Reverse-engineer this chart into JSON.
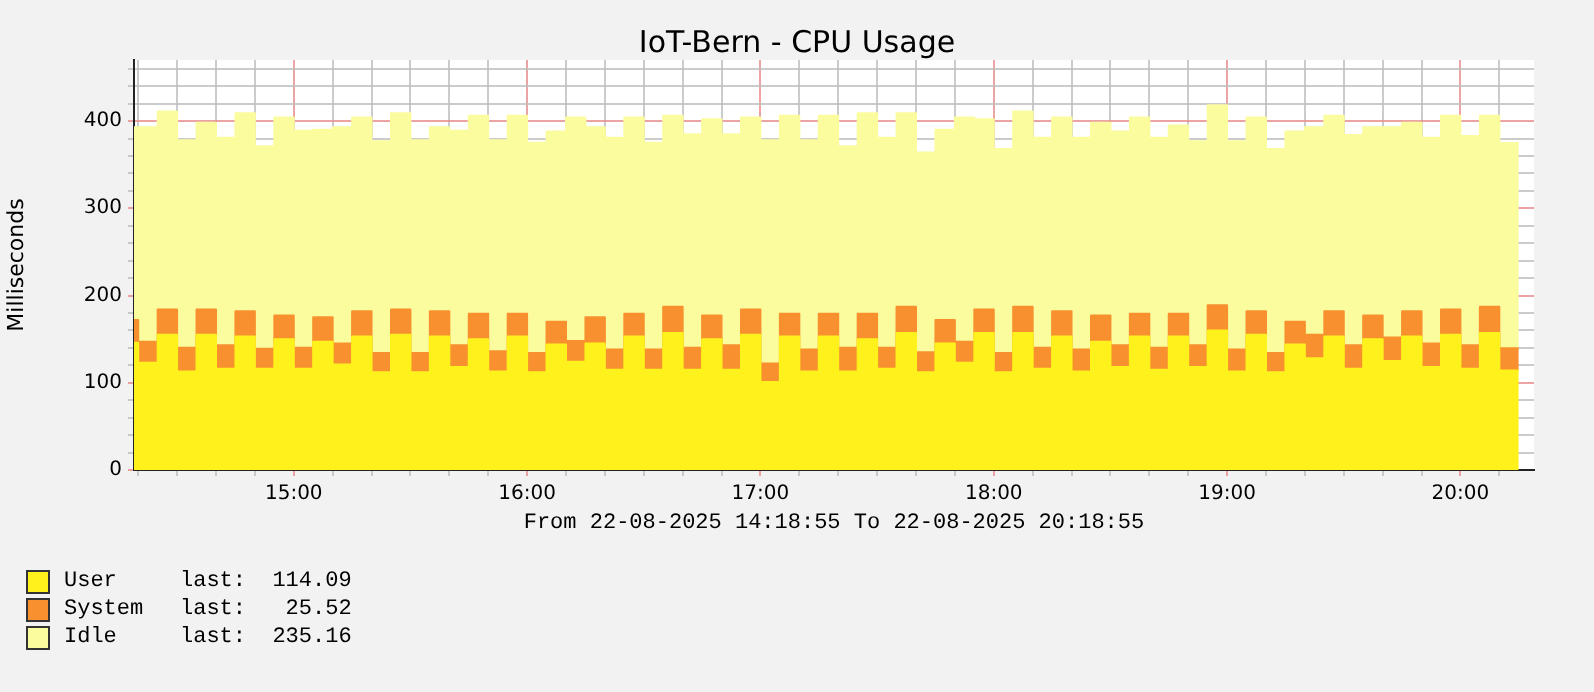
{
  "chart_data": {
    "type": "area",
    "title": "IoT-Bern - CPU Usage",
    "xlabel": "From 22-08-2025 14:18:55 To 22-08-2025 20:18:55",
    "ylabel": "Milliseconds",
    "stacked": true,
    "grid": true,
    "legend": "bottom left",
    "x": [
      14.3153,
      14.3333,
      14.3333,
      14.4167,
      14.4167,
      14.5,
      14.5,
      14.5833,
      14.5833,
      14.6667,
      14.6667,
      14.75,
      14.75,
      14.8333,
      14.8333,
      14.9167,
      14.9167,
      15,
      15,
      15.0833,
      15.0833,
      15.1667,
      15.1667,
      15.25,
      15.25,
      15.3333,
      15.3333,
      15.4167,
      15.4167,
      15.5,
      15.5,
      15.5833,
      15.5833,
      15.6667,
      15.6667,
      15.75,
      15.75,
      15.8333,
      15.8333,
      15.9167,
      15.9167,
      16,
      16,
      16.0833,
      16.0833,
      16.1667,
      16.1667,
      16.25,
      16.25,
      16.3333,
      16.3333,
      16.4167,
      16.4167,
      16.5,
      16.5,
      16.5833,
      16.5833,
      16.6667,
      16.6667,
      16.75,
      16.75,
      16.8333,
      16.8333,
      16.9167,
      16.9167,
      17,
      17,
      17.0833,
      17.0833,
      17.1667,
      17.1667,
      17.25,
      17.25,
      17.3333,
      17.3333,
      17.4167,
      17.4167,
      17.5,
      17.5,
      17.5833,
      17.5833,
      17.6667,
      17.6667,
      17.75,
      17.75,
      17.8333,
      17.8333,
      17.9167,
      17.9167,
      18,
      18,
      18.0833,
      18.0833,
      18.1667,
      18.1667,
      18.25,
      18.25,
      18.3333,
      18.3333,
      18.4167,
      18.4167,
      18.5,
      18.5,
      18.5833,
      18.5833,
      18.6667,
      18.6667,
      18.75,
      18.75,
      18.8333,
      18.8333,
      18.9167,
      18.9167,
      19,
      19,
      19.0833,
      19.0833,
      19.1667,
      19.1667,
      19.25,
      19.25,
      19.3333,
      19.3333,
      19.4167,
      19.4167,
      19.5,
      19.5,
      19.5833,
      19.5833,
      19.6667,
      19.6667,
      19.75,
      19.75,
      19.8333,
      19.8333,
      19.9167,
      19.9167,
      20,
      20,
      20.0833,
      20.0833,
      20.1667,
      20.1667,
      20.25
    ],
    "xlim": [
      14.3153,
      20.3153
    ],
    "xticks": [
      {
        "value": 14.3333,
        "label": null
      },
      {
        "value": 14.5,
        "label": null
      },
      {
        "value": 14.6667,
        "label": null
      },
      {
        "value": 14.8333,
        "label": null
      },
      {
        "value": 15,
        "label": "15:00"
      },
      {
        "value": 15.1667,
        "label": null
      },
      {
        "value": 15.3333,
        "label": null
      },
      {
        "value": 15.5,
        "label": null
      },
      {
        "value": 15.6667,
        "label": null
      },
      {
        "value": 15.8333,
        "label": null
      },
      {
        "value": 16,
        "label": "16:00"
      },
      {
        "value": 16.1667,
        "label": null
      },
      {
        "value": 16.3333,
        "label": null
      },
      {
        "value": 16.5,
        "label": null
      },
      {
        "value": 16.6667,
        "label": null
      },
      {
        "value": 16.8333,
        "label": null
      },
      {
        "value": 17,
        "label": "17:00"
      },
      {
        "value": 17.1667,
        "label": null
      },
      {
        "value": 17.3333,
        "label": null
      },
      {
        "value": 17.5,
        "label": null
      },
      {
        "value": 17.6667,
        "label": null
      },
      {
        "value": 17.8333,
        "label": null
      },
      {
        "value": 18,
        "label": "18:00"
      },
      {
        "value": 18.1667,
        "label": null
      },
      {
        "value": 18.3333,
        "label": null
      },
      {
        "value": 18.5,
        "label": null
      },
      {
        "value": 18.6667,
        "label": null
      },
      {
        "value": 18.8333,
        "label": null
      },
      {
        "value": 19,
        "label": "19:00"
      },
      {
        "value": 19.1667,
        "label": null
      },
      {
        "value": 19.3333,
        "label": null
      },
      {
        "value": 19.5,
        "label": null
      },
      {
        "value": 19.6667,
        "label": null
      },
      {
        "value": 19.8333,
        "label": null
      },
      {
        "value": 20,
        "label": "20:00"
      },
      {
        "value": 20.1667,
        "label": null
      }
    ],
    "ylim": [
      0,
      470
    ],
    "yticks": [
      0,
      {
        "value": 20,
        "label": null
      },
      {
        "value": 40,
        "label": null
      },
      {
        "value": 60,
        "label": null
      },
      {
        "value": 80,
        "label": null
      },
      100,
      {
        "value": 120,
        "label": null
      },
      {
        "value": 140,
        "label": null
      },
      {
        "value": 160,
        "label": null
      },
      {
        "value": 180,
        "label": null
      },
      200,
      {
        "value": 220,
        "label": null
      },
      {
        "value": 240,
        "label": null
      },
      {
        "value": 260,
        "label": null
      },
      {
        "value": 280,
        "label": null
      },
      300,
      {
        "value": 320,
        "label": null
      },
      {
        "value": 340,
        "label": null
      },
      {
        "value": 360,
        "label": null
      },
      {
        "value": 380,
        "label": null
      },
      400,
      {
        "value": 420,
        "label": null
      },
      {
        "value": 440,
        "label": null
      },
      {
        "value": 460,
        "label": null
      }
    ],
    "series": [
      {
        "name": "User",
        "color": "#fff21c",
        "values": [
          146,
          146,
          123,
          123,
          155,
          155,
          113,
          113,
          155,
          155,
          116,
          116,
          153,
          153,
          116,
          116,
          150,
          150,
          116,
          116,
          147,
          147,
          121,
          121,
          153,
          153,
          112,
          112,
          155,
          155,
          112,
          112,
          153,
          153,
          118,
          118,
          150,
          150,
          113,
          113,
          153,
          153,
          112,
          112,
          144,
          144,
          124,
          124,
          145,
          145,
          115,
          115,
          153,
          153,
          115,
          115,
          157,
          157,
          115,
          115,
          150,
          150,
          115,
          115,
          155,
          155,
          101,
          101,
          153,
          153,
          113,
          113,
          153,
          153,
          113,
          113,
          150,
          150,
          116,
          116,
          157,
          157,
          112,
          112,
          145,
          145,
          123,
          123,
          157,
          157,
          112,
          112,
          157,
          157,
          116,
          116,
          153,
          153,
          113,
          113,
          147,
          147,
          118,
          118,
          153,
          153,
          115,
          115,
          153,
          153,
          118,
          118,
          160,
          160,
          113,
          113,
          155,
          155,
          112,
          112,
          144,
          144,
          128,
          128,
          153,
          153,
          116,
          116,
          150,
          150,
          125,
          125,
          153,
          153,
          118,
          118,
          155,
          155,
          116,
          116,
          157,
          157,
          114.09,
          114.09
        ]
      },
      {
        "name": "System",
        "color": "#f8902f",
        "values": [
          26,
          26,
          24,
          24,
          29,
          29,
          27,
          27,
          29,
          29,
          27,
          27,
          29,
          29,
          23,
          23,
          27,
          27,
          24,
          24,
          28,
          28,
          24,
          24,
          29,
          29,
          22,
          22,
          29,
          29,
          22,
          22,
          29,
          29,
          25,
          25,
          29,
          29,
          23,
          23,
          26,
          26,
          22,
          22,
          26,
          26,
          24,
          24,
          30,
          30,
          23,
          23,
          26,
          26,
          23,
          23,
          30,
          30,
          25,
          25,
          27,
          27,
          28,
          28,
          29,
          29,
          21,
          21,
          26,
          26,
          25,
          25,
          26,
          26,
          27,
          27,
          29,
          29,
          24,
          24,
          30,
          30,
          23,
          23,
          27,
          27,
          24,
          24,
          27,
          27,
          22,
          22,
          30,
          30,
          24,
          24,
          29,
          29,
          25,
          25,
          30,
          30,
          25,
          25,
          26,
          26,
          25,
          25,
          26,
          26,
          25,
          25,
          29,
          29,
          25,
          25,
          27,
          27,
          22,
          22,
          26,
          26,
          27,
          27,
          29,
          29,
          27,
          27,
          27,
          27,
          27,
          27,
          29,
          29,
          27,
          27,
          29,
          29,
          27,
          27,
          30,
          30,
          25.52,
          25.52
        ]
      },
      {
        "name": "Idle",
        "color": "#fafc9e",
        "values": [
          221,
          221,
          246,
          246,
          227,
          227,
          238,
          238,
          214,
          214,
          238,
          238,
          227,
          227,
          232,
          232,
          227,
          227,
          249,
          249,
          215,
          215,
          248,
          248,
          222,
          222,
          243,
          243,
          225,
          225,
          244,
          244,
          211,
          211,
          246,
          246,
          227,
          227,
          242,
          242,
          227,
          227,
          241,
          241,
          218,
          218,
          256,
          256,
          218,
          218,
          243,
          243,
          225,
          225,
          237,
          237,
          219,
          219,
          245,
          245,
          225,
          225,
          242,
          242,
          220,
          220,
          256,
          256,
          227,
          227,
          240,
          240,
          227,
          227,
          231,
          231,
          230,
          230,
          241,
          241,
          222,
          222,
          229,
          229,
          218,
          218,
          257,
          257,
          218,
          218,
          234,
          234,
          224,
          224,
          241,
          241,
          222,
          222,
          243,
          243,
          221,
          221,
          245,
          245,
          225,
          225,
          241,
          241,
          216,
          216,
          234,
          234,
          229,
          229,
          239,
          239,
          222,
          222,
          234,
          234,
          218,
          218,
          238,
          238,
          224,
          224,
          241,
          241,
          216,
          216,
          241,
          241,
          216,
          216,
          236,
          236,
          222,
          222,
          240,
          240,
          219,
          219,
          235.16,
          235.16
        ]
      }
    ],
    "annotations": [
      "last:  114.09",
      "last:   25.52",
      "last:  235.16"
    ]
  }
}
